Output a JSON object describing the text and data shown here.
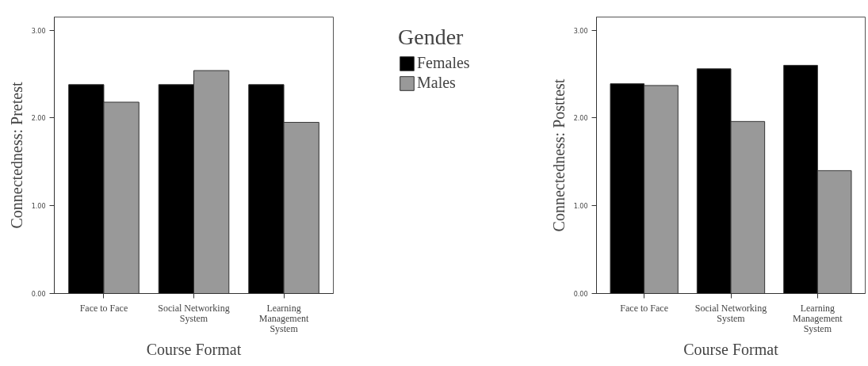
{
  "chart_data": [
    {
      "type": "bar",
      "xlabel": "Course Format",
      "ylabel": "Connectedness: Pretest",
      "legend_title": "Gender",
      "legend": "right",
      "categories": [
        "Face to Face",
        "Social Networking\nSystem",
        "Learning\nManagement\nSystem"
      ],
      "series": [
        {
          "name": "Females",
          "color": "#000000",
          "values": [
            2.38,
            2.38,
            2.38
          ]
        },
        {
          "name": "Males",
          "color": "#999999",
          "values": [
            2.18,
            2.54,
            1.95
          ]
        }
      ],
      "ylim": [
        0,
        3.15
      ],
      "yticks": [
        {
          "value": 0,
          "label": "0.00"
        },
        {
          "value": 1,
          "label": "1.00"
        },
        {
          "value": 2,
          "label": "2.00"
        },
        {
          "value": 3,
          "label": "3.00"
        }
      ],
      "grid": false
    },
    {
      "type": "bar",
      "xlabel": "Course Format",
      "ylabel": "Connectedness: Posttest",
      "categories": [
        "Face to Face",
        "Social Networking\nSystem",
        "Learning\nManagement\nSystem"
      ],
      "series": [
        {
          "color": "#000000",
          "values": [
            2.39,
            2.56,
            2.6
          ]
        },
        {
          "color": "#999999",
          "values": [
            2.37,
            1.96,
            1.4
          ]
        }
      ],
      "ylim": [
        0,
        3.15
      ],
      "yticks": [
        {
          "value": 0,
          "label": "0.00"
        },
        {
          "value": 1,
          "label": "1.00"
        },
        {
          "value": 2,
          "label": "2.00"
        },
        {
          "value": 3,
          "label": "3.00"
        }
      ],
      "grid": false
    }
  ]
}
